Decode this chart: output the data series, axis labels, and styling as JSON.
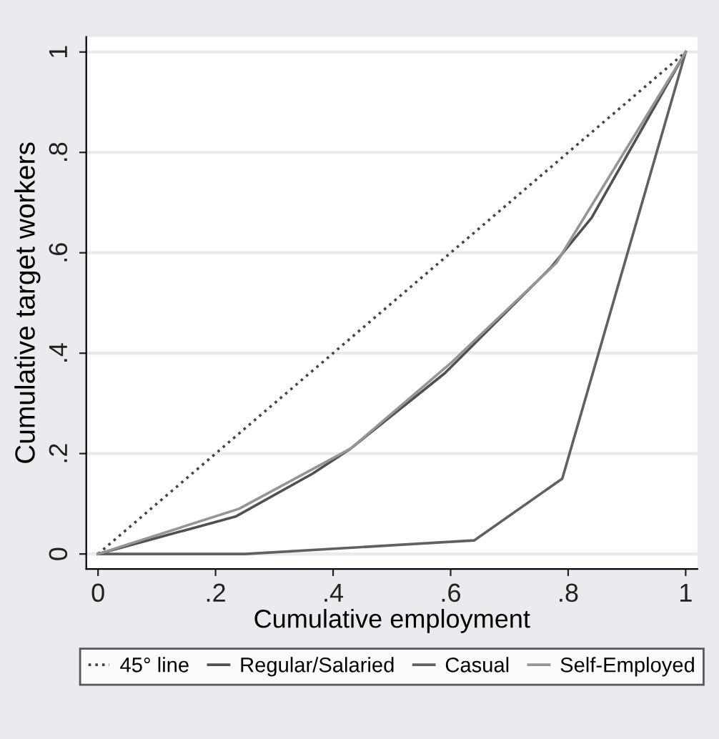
{
  "chart_data": {
    "type": "line",
    "xlabel": "Cumulative employment",
    "ylabel": "Cumulative target workers",
    "xlim": [
      -0.02,
      1.02
    ],
    "ylim": [
      -0.03,
      1.03
    ],
    "xticks": [
      0,
      {
        "value": 0.2,
        "label": ".2"
      },
      {
        "value": 0.4,
        "label": ".4"
      },
      {
        "value": 0.6,
        "label": ".6"
      },
      {
        "value": 0.8,
        "label": ".8"
      },
      1
    ],
    "yticks": [
      0,
      {
        "value": 0.2,
        "label": ".2"
      },
      {
        "value": 0.4,
        "label": ".4"
      },
      {
        "value": 0.6,
        "label": ".6"
      },
      {
        "value": 0.8,
        "label": ".8"
      },
      1
    ],
    "grid": "y",
    "legend": "bottom",
    "series": [
      {
        "name": "45° line",
        "color": "#444444",
        "line_style": "dotted",
        "x": [
          0,
          1
        ],
        "values": [
          0,
          1
        ]
      },
      {
        "name": "Regular/Salaried",
        "color": "#505050",
        "x": [
          0,
          0.235,
          0.365,
          0.43,
          0.59,
          0.77,
          0.84,
          1
        ],
        "values": [
          0,
          0.075,
          0.16,
          0.21,
          0.36,
          0.57,
          0.67,
          1
        ]
      },
      {
        "name": "Casual",
        "color": "#606060",
        "x": [
          0,
          0.25,
          0.64,
          0.79,
          1
        ],
        "values": [
          0,
          0,
          0.027,
          0.15,
          1
        ]
      },
      {
        "name": "Self-Employed",
        "color": "#959595",
        "x": [
          0,
          0.24,
          0.43,
          0.6,
          0.78,
          1
        ],
        "values": [
          0,
          0.09,
          0.21,
          0.38,
          0.58,
          1
        ]
      }
    ]
  }
}
